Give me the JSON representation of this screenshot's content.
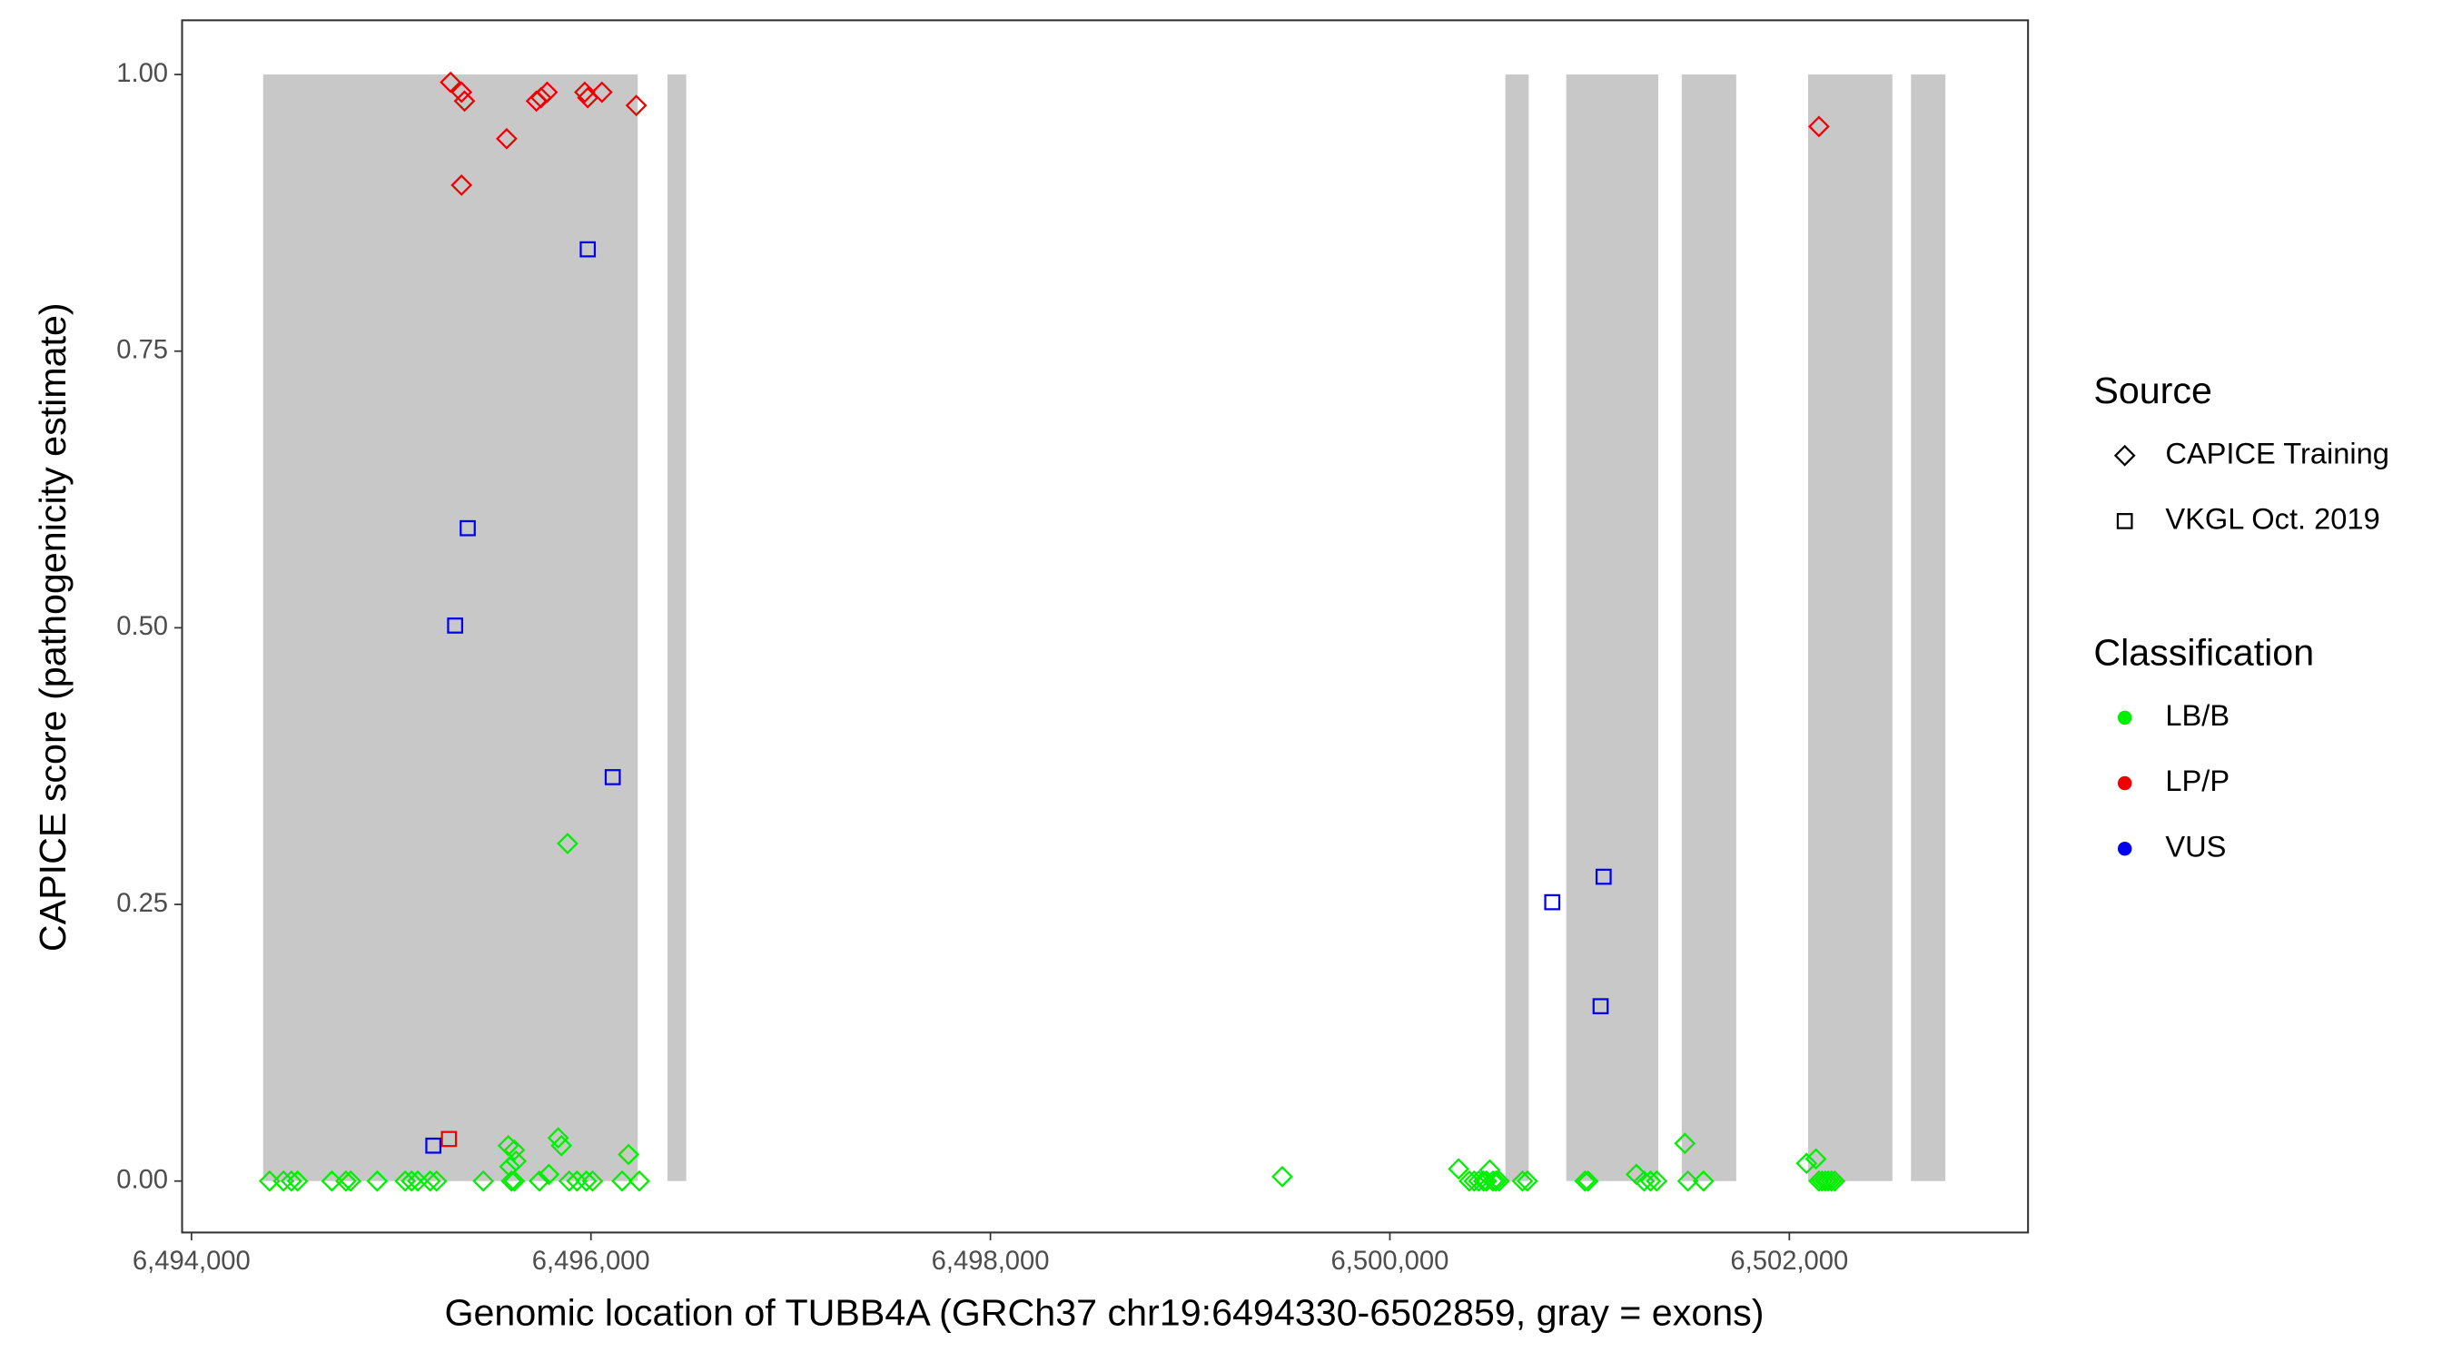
{
  "chart_data": {
    "type": "scatter",
    "x_label": "Genomic location of TUBB4A (GRCh37 chr19:6494330-6502859, gray = exons)",
    "y_label": "CAPICE score (pathogenicity estimate)",
    "xlim": [
      6493953,
      6503195
    ],
    "ylim": [
      -0.0465,
      1.049
    ],
    "xticks": [
      {
        "value": 6494000,
        "label": "6,494,000"
      },
      {
        "value": 6496000,
        "label": "6,496,000"
      },
      {
        "value": 6498000,
        "label": "6,498,000"
      },
      {
        "value": 6500000,
        "label": "6,500,000"
      },
      {
        "value": 6502000,
        "label": "6,502,000"
      }
    ],
    "yticks": [
      {
        "value": 0,
        "label": "0.00"
      },
      {
        "value": 0.25,
        "label": "0.25"
      },
      {
        "value": 0.5,
        "label": "0.50"
      },
      {
        "value": 0.75,
        "label": "0.75"
      },
      {
        "value": 1,
        "label": "1.00"
      }
    ],
    "exon_color": "#c8c8c8",
    "exons": [
      [
        6494359,
        6496234
      ],
      [
        6496383,
        6496477
      ],
      [
        6500578,
        6500695
      ],
      [
        6500883,
        6501344
      ],
      [
        6501461,
        6501734
      ],
      [
        6502094,
        6502516
      ],
      [
        6502609,
        6502781
      ]
    ],
    "exon_ylim": [
      0,
      1
    ],
    "source_legend": {
      "title": "Source",
      "entries": [
        {
          "name": "CAPICE Training",
          "shape": "diamond"
        },
        {
          "name": "VKGL Oct. 2019",
          "shape": "square"
        }
      ]
    },
    "classification_legend": {
      "title": "Classification",
      "entries": [
        {
          "name": "LB/B",
          "color": "#00ee00"
        },
        {
          "name": "LP/P",
          "color": "#ee0000"
        },
        {
          "name": "VUS",
          "color": "#0000ee"
        }
      ]
    },
    "series": [
      {
        "source": "CAPICE Training",
        "classification": "LP/P",
        "x": [
          6495297,
          6495352,
          6495367,
          6495352,
          6495578,
          6495727,
          6495750,
          6495781,
          6495969,
          6495984,
          6496055,
          6496227,
          6502148
        ],
        "y": [
          0.993,
          0.984,
          0.976,
          0.9,
          0.942,
          0.976,
          0.979,
          0.984,
          0.984,
          0.979,
          0.984,
          0.972,
          0.953
        ]
      },
      {
        "source": "VKGL Oct. 2019",
        "classification": "LP/P",
        "x": [
          6495289
        ],
        "y": [
          0.038
        ]
      },
      {
        "source": "VKGL Oct. 2019",
        "classification": "VUS",
        "x": [
          6495984,
          6495383,
          6495320,
          6496109,
          6495211,
          6500813,
          6501070,
          6501055
        ],
        "y": [
          0.842,
          0.59,
          0.502,
          0.365,
          0.032,
          0.252,
          0.275,
          0.158
        ]
      },
      {
        "source": "CAPICE Training",
        "classification": "LB/B",
        "x": [
          6494391,
          6494461,
          6494500,
          6494531,
          6494703,
          6494773,
          6494797,
          6494930,
          6495070,
          6495102,
          6495133,
          6495195,
          6495227,
          6495461,
          6495602,
          6495617,
          6495742,
          6495891,
          6495930,
          6495977,
          6496008,
          6496156,
          6496242,
          6495586,
          6495617,
          6495625,
          6495594,
          6495836,
          6495852,
          6495883,
          6495789,
          6496188,
          6499461,
          6500344,
          6500398,
          6500422,
          6500445,
          6500469,
          6500484,
          6500500,
          6500516,
          6500531,
          6500547,
          6500664,
          6500688,
          6500977,
          6500992,
          6501234,
          6501273,
          6501305,
          6501336,
          6501477,
          6501492,
          6501570,
          6502086,
          6502133,
          6502148,
          6502164,
          6502180,
          6502195,
          6502211,
          6502227
        ],
        "y": [
          0,
          0,
          0,
          0,
          0,
          0,
          0,
          0,
          0,
          0,
          0,
          0,
          0,
          0,
          0,
          0,
          0,
          0,
          0,
          0,
          0,
          0,
          0,
          0.032,
          0.028,
          0.018,
          0.013,
          0.039,
          0.032,
          0.305,
          0.006,
          0.024,
          0.004,
          0.011,
          0,
          0,
          0,
          0,
          0,
          0.01,
          0,
          0,
          0,
          0,
          0,
          0,
          0,
          0.006,
          0,
          0,
          0,
          0.034,
          0,
          0,
          0.016,
          0.02,
          0,
          0,
          0,
          0,
          0,
          0
        ]
      }
    ]
  }
}
